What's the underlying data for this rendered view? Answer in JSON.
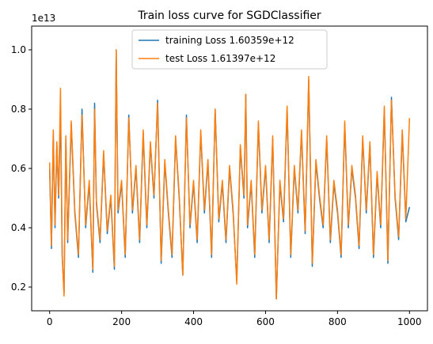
{
  "chart_data": {
    "type": "line",
    "title": "Train loss curve for SGDClassifier",
    "xlabel": "",
    "ylabel": "",
    "y_offset_label": "1e13",
    "xlim": [
      -50,
      1050
    ],
    "ylim": [
      0.12,
      1.08
    ],
    "x_ticks": [
      0,
      200,
      400,
      600,
      800,
      1000
    ],
    "y_ticks": [
      0.2,
      0.4,
      0.6,
      0.8,
      1.0
    ],
    "x_tick_labels": [
      "0",
      "200",
      "400",
      "600",
      "800",
      "1000"
    ],
    "y_tick_labels": [
      "0.2",
      "0.4",
      "0.6",
      "0.8",
      "1.0"
    ],
    "grid": false,
    "legend_position": "top-center",
    "series": [
      {
        "name": "training Loss 1.60359e+12",
        "color": "#1f77b4",
        "x": [
          0,
          5,
          10,
          15,
          20,
          25,
          30,
          35,
          40,
          45,
          50,
          60,
          70,
          80,
          90,
          100,
          110,
          120,
          125,
          130,
          140,
          150,
          160,
          170,
          180,
          185,
          190,
          200,
          210,
          220,
          230,
          240,
          250,
          260,
          270,
          280,
          290,
          300,
          310,
          320,
          330,
          340,
          350,
          360,
          370,
          380,
          390,
          400,
          410,
          420,
          430,
          440,
          450,
          460,
          470,
          480,
          490,
          500,
          510,
          520,
          530,
          540,
          545,
          550,
          560,
          570,
          580,
          590,
          600,
          610,
          620,
          630,
          640,
          650,
          660,
          670,
          680,
          690,
          700,
          710,
          720,
          730,
          740,
          750,
          760,
          770,
          780,
          790,
          800,
          810,
          820,
          830,
          840,
          850,
          860,
          870,
          880,
          890,
          900,
          910,
          920,
          930,
          940,
          950,
          960,
          970,
          980,
          990,
          1000
        ],
        "values": [
          0.6,
          0.33,
          0.72,
          0.4,
          0.68,
          0.5,
          0.8,
          0.3,
          0.18,
          0.7,
          0.35,
          0.75,
          0.45,
          0.3,
          0.8,
          0.4,
          0.55,
          0.25,
          0.82,
          0.48,
          0.35,
          0.65,
          0.38,
          0.5,
          0.26,
          1.0,
          0.45,
          0.55,
          0.3,
          0.78,
          0.45,
          0.6,
          0.35,
          0.72,
          0.4,
          0.68,
          0.5,
          0.83,
          0.28,
          0.62,
          0.45,
          0.3,
          0.7,
          0.5,
          0.24,
          0.78,
          0.4,
          0.55,
          0.35,
          0.72,
          0.45,
          0.62,
          0.3,
          0.8,
          0.42,
          0.55,
          0.35,
          0.6,
          0.45,
          0.22,
          0.67,
          0.5,
          0.85,
          0.4,
          0.55,
          0.3,
          0.75,
          0.45,
          0.6,
          0.35,
          0.7,
          0.16,
          0.55,
          0.42,
          0.8,
          0.3,
          0.6,
          0.45,
          0.72,
          0.38,
          0.9,
          0.27,
          0.62,
          0.5,
          0.4,
          0.7,
          0.35,
          0.55,
          0.45,
          0.3,
          0.75,
          0.4,
          0.6,
          0.5,
          0.33,
          0.7,
          0.45,
          0.68,
          0.3,
          0.58,
          0.4,
          0.8,
          0.28,
          0.84,
          0.5,
          0.36,
          0.72,
          0.42,
          0.47
        ]
      },
      {
        "name": "test Loss 1.61397e+12",
        "color": "#ff7f0e",
        "x": [
          0,
          5,
          10,
          15,
          20,
          25,
          30,
          35,
          40,
          45,
          50,
          60,
          70,
          80,
          90,
          100,
          110,
          120,
          125,
          130,
          140,
          150,
          160,
          170,
          180,
          185,
          190,
          200,
          210,
          220,
          230,
          240,
          250,
          260,
          270,
          280,
          290,
          300,
          310,
          320,
          330,
          340,
          350,
          360,
          370,
          380,
          390,
          400,
          410,
          420,
          430,
          440,
          450,
          460,
          470,
          480,
          490,
          500,
          510,
          520,
          530,
          540,
          545,
          550,
          560,
          570,
          580,
          590,
          600,
          610,
          620,
          630,
          640,
          650,
          660,
          670,
          680,
          690,
          700,
          710,
          720,
          730,
          740,
          750,
          760,
          770,
          780,
          790,
          800,
          810,
          820,
          830,
          840,
          850,
          860,
          870,
          880,
          890,
          900,
          910,
          920,
          930,
          940,
          950,
          960,
          970,
          980,
          990,
          1000
        ],
        "values": [
          0.62,
          0.34,
          0.73,
          0.41,
          0.69,
          0.51,
          0.87,
          0.31,
          0.17,
          0.71,
          0.36,
          0.76,
          0.46,
          0.31,
          0.78,
          0.41,
          0.56,
          0.26,
          0.8,
          0.49,
          0.36,
          0.66,
          0.39,
          0.51,
          0.27,
          1.0,
          0.46,
          0.56,
          0.31,
          0.77,
          0.46,
          0.61,
          0.36,
          0.73,
          0.41,
          0.69,
          0.51,
          0.82,
          0.29,
          0.63,
          0.46,
          0.31,
          0.71,
          0.51,
          0.24,
          0.77,
          0.41,
          0.56,
          0.36,
          0.73,
          0.46,
          0.63,
          0.31,
          0.8,
          0.43,
          0.56,
          0.36,
          0.61,
          0.46,
          0.21,
          0.68,
          0.51,
          0.85,
          0.41,
          0.56,
          0.31,
          0.76,
          0.46,
          0.61,
          0.36,
          0.71,
          0.16,
          0.56,
          0.43,
          0.81,
          0.31,
          0.61,
          0.46,
          0.73,
          0.39,
          0.91,
          0.28,
          0.63,
          0.51,
          0.41,
          0.71,
          0.36,
          0.56,
          0.46,
          0.31,
          0.76,
          0.41,
          0.61,
          0.51,
          0.34,
          0.71,
          0.46,
          0.69,
          0.31,
          0.59,
          0.41,
          0.81,
          0.29,
          0.83,
          0.51,
          0.37,
          0.73,
          0.43,
          0.77
        ]
      }
    ]
  }
}
